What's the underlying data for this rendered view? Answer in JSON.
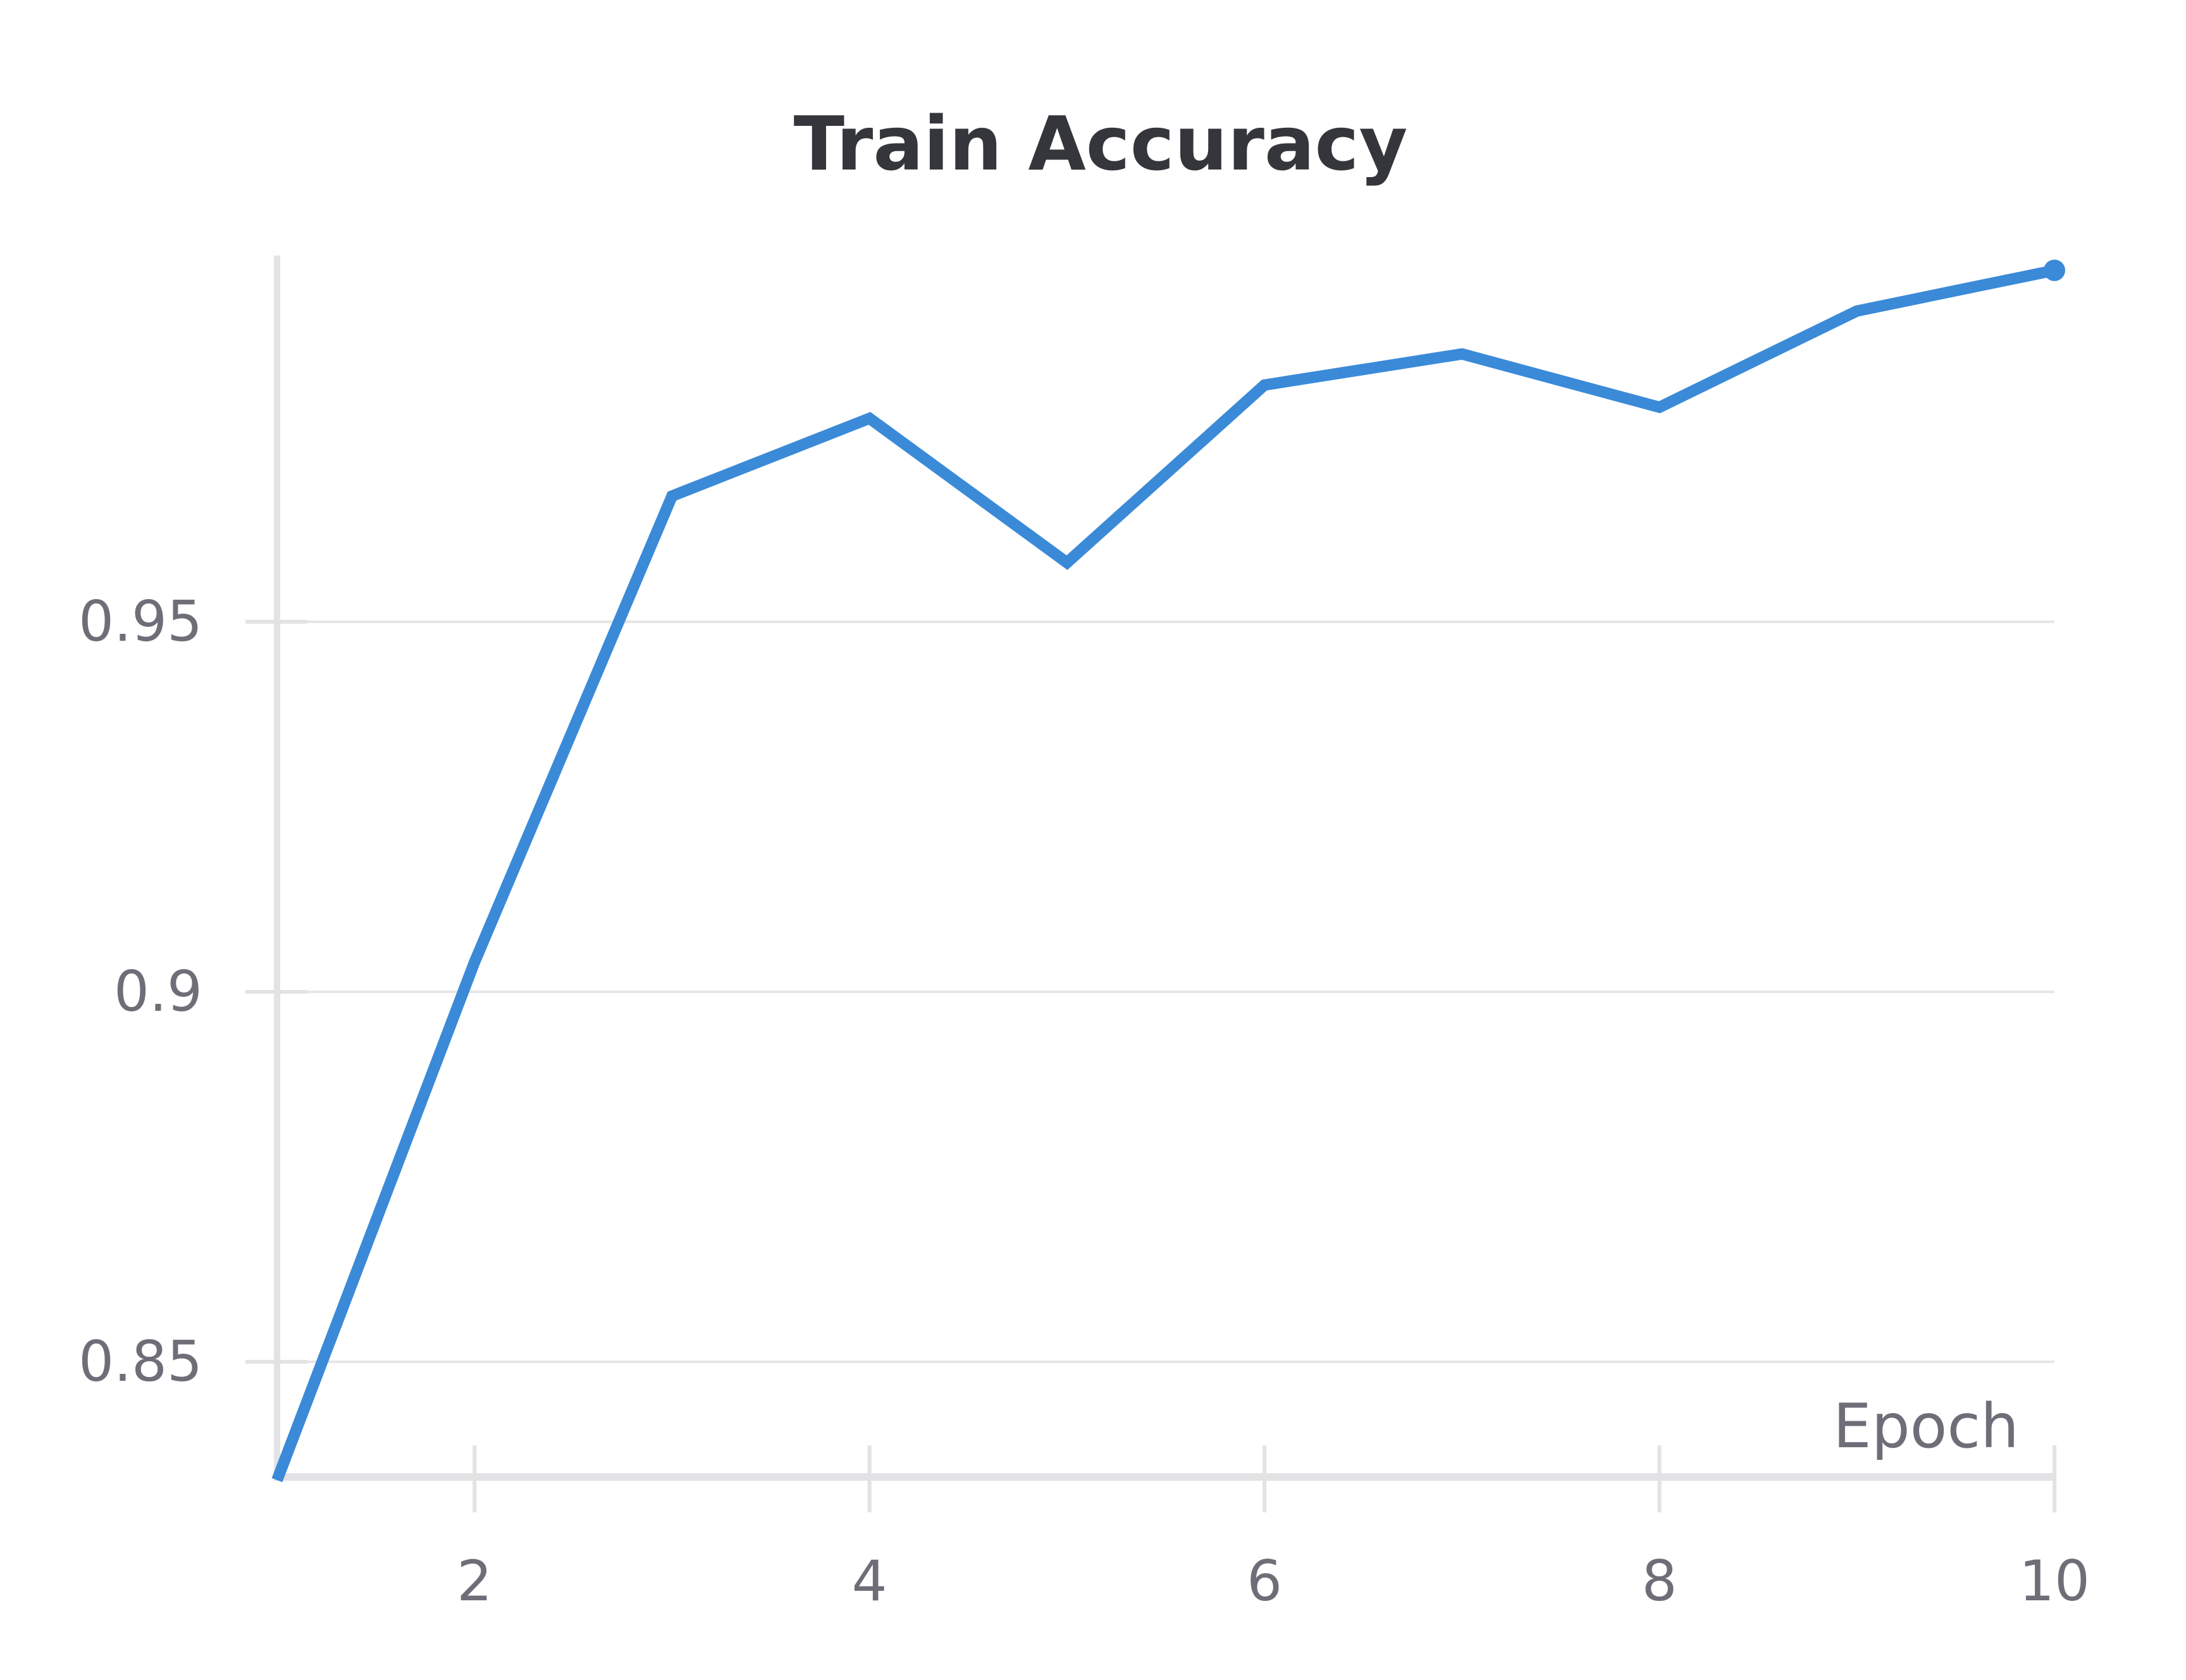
{
  "chart_data": {
    "type": "line",
    "title": "Train Accuracy",
    "xlabel": "Epoch",
    "ylabel": "",
    "xlim": [
      1,
      10
    ],
    "ylim": [
      0.834,
      0.9995
    ],
    "x_ticks": [
      2,
      4,
      6,
      8,
      10
    ],
    "x_tick_labels": [
      "2",
      "4",
      "6",
      "8",
      "10"
    ],
    "y_ticks": [
      0.85,
      0.9,
      0.95
    ],
    "y_tick_labels": [
      "0.85",
      "0.9",
      "0.95"
    ],
    "grid": true,
    "legend": "none",
    "series": [
      {
        "color": "#3a8ad8",
        "x": [
          1,
          2,
          3,
          4,
          5,
          6,
          7,
          8,
          9,
          10
        ],
        "y": [
          0.834,
          0.904,
          0.967,
          0.9775,
          0.958,
          0.982,
          0.9862,
          0.979,
          0.992,
          0.9975
        ]
      }
    ]
  }
}
